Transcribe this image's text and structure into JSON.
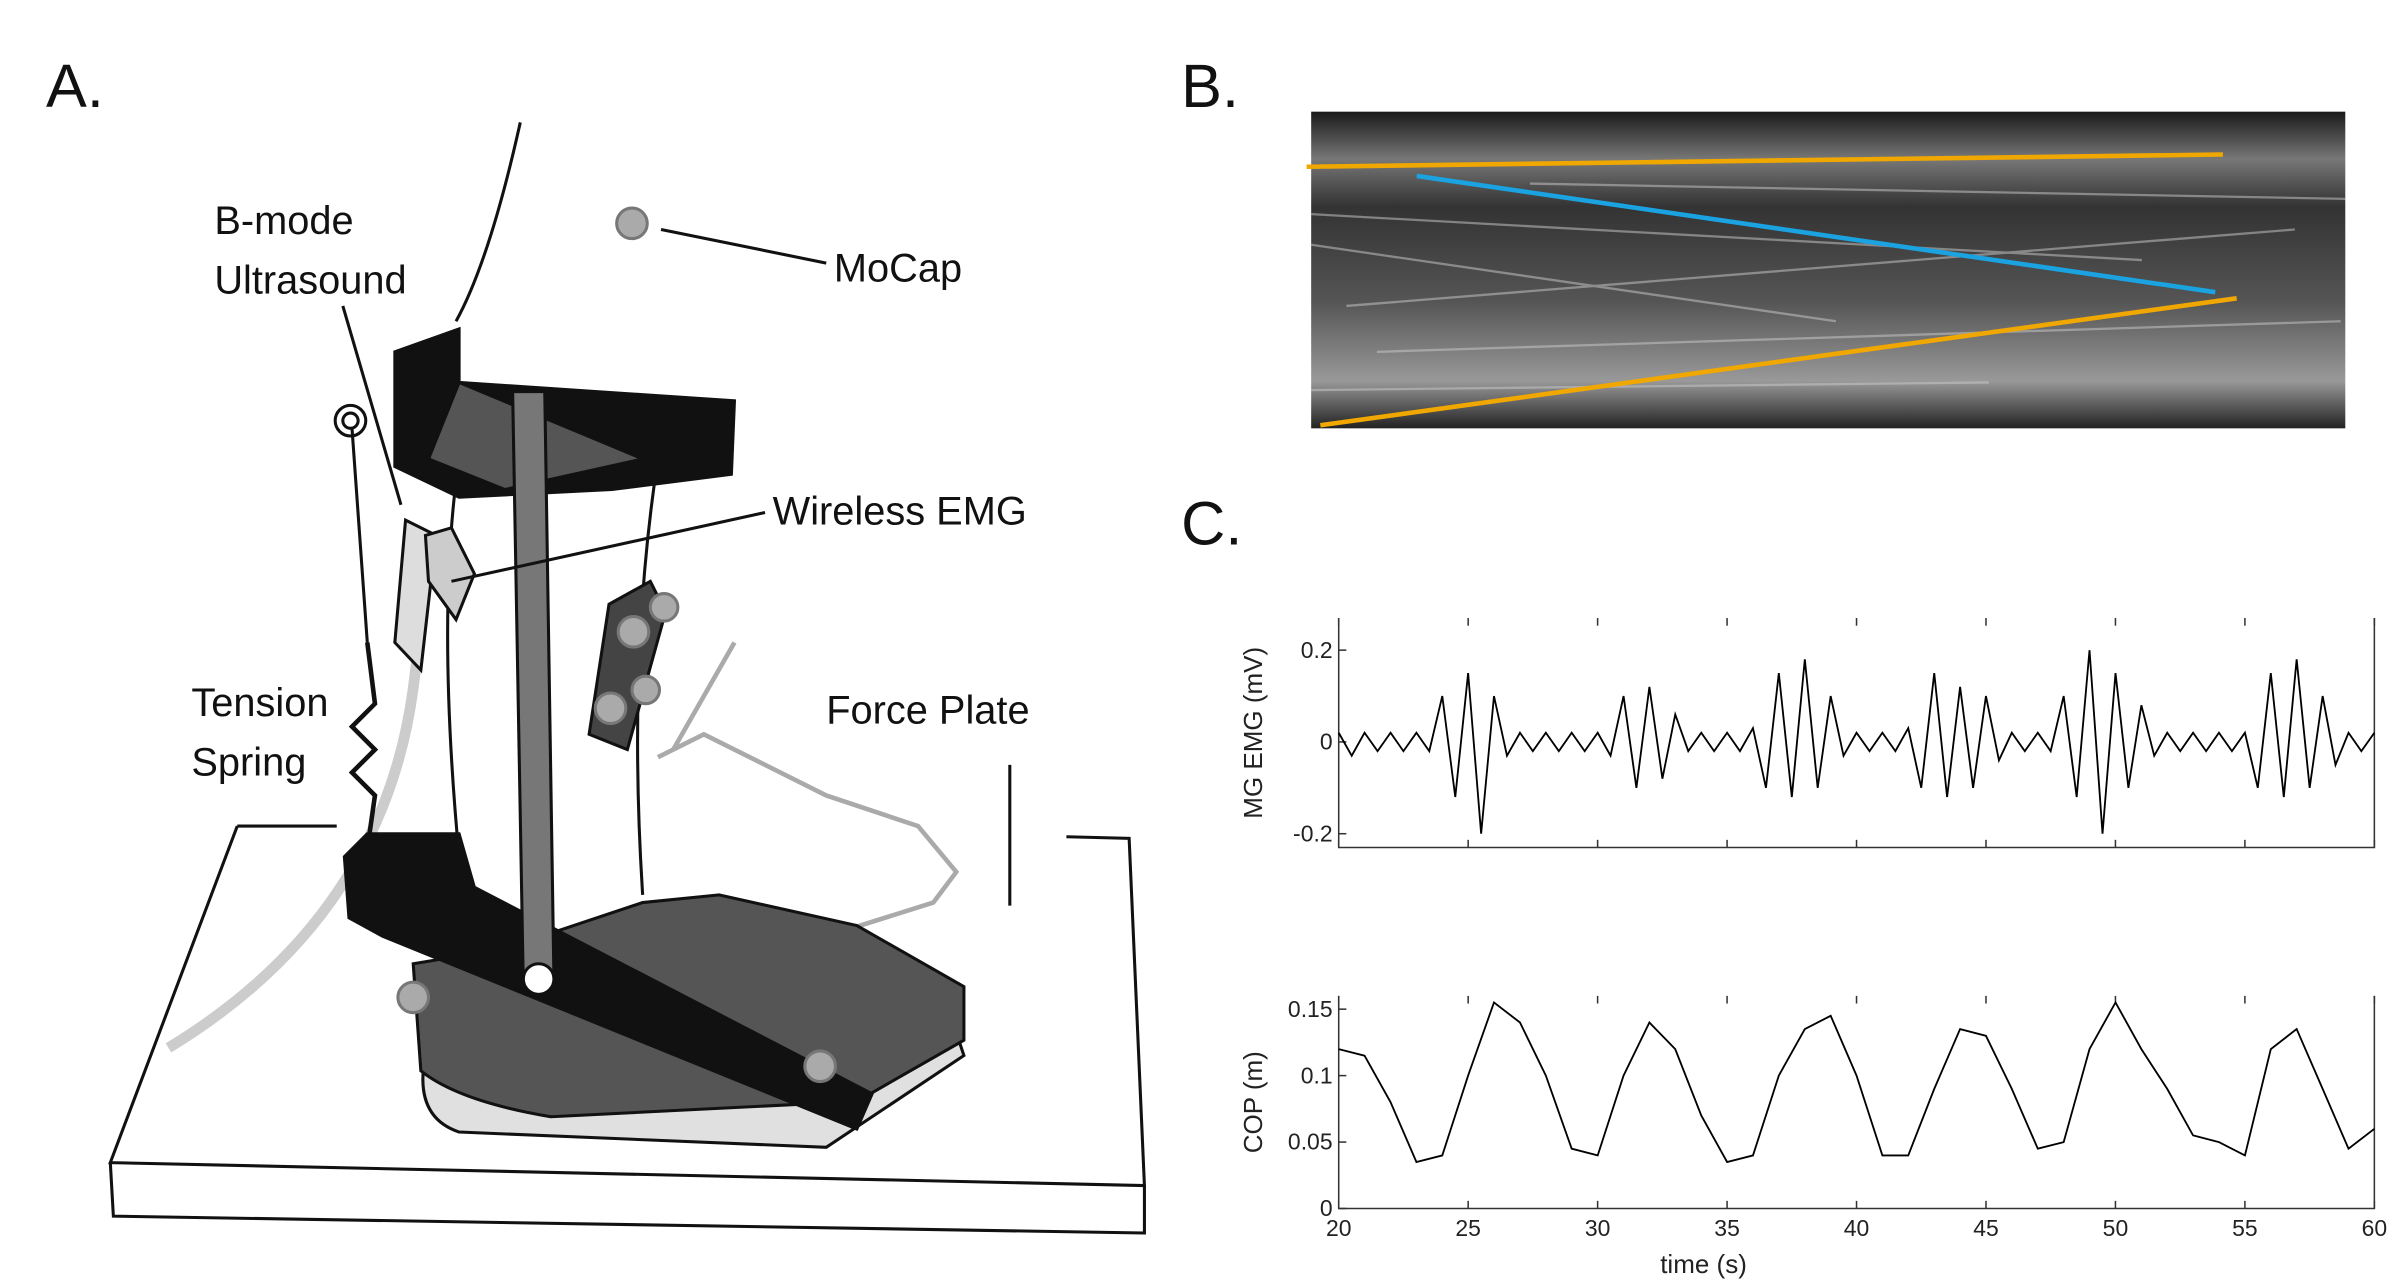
{
  "panels": {
    "a": "A.",
    "b": "B.",
    "c": "C."
  },
  "diagram": {
    "ultrasound": [
      "B-mode",
      "Ultrasound"
    ],
    "mocap": "MoCap",
    "emg": "Wireless EMG",
    "spring": [
      "Tension",
      "Spring"
    ],
    "plate": "Force Plate"
  },
  "chart_data": [
    {
      "type": "line",
      "ylabel": "MG EMG (mV)",
      "color": "#000000",
      "x": [
        20,
        20.5,
        21,
        21.5,
        22,
        22.5,
        23,
        23.5,
        24,
        24.5,
        25,
        25.5,
        26,
        26.5,
        27,
        27.5,
        28,
        28.5,
        29,
        29.5,
        30,
        30.5,
        31,
        31.5,
        32,
        32.5,
        33,
        33.5,
        34,
        34.5,
        35,
        35.5,
        36,
        36.5,
        37,
        37.5,
        38,
        38.5,
        39,
        39.5,
        40,
        40.5,
        41,
        41.5,
        42,
        42.5,
        43,
        43.5,
        44,
        44.5,
        45,
        45.5,
        46,
        46.5,
        47,
        47.5,
        48,
        48.5,
        49,
        49.5,
        50,
        50.5,
        51,
        51.5,
        52,
        52.5,
        53,
        53.5,
        54,
        54.5,
        55,
        55.5,
        56,
        56.5,
        57,
        57.5,
        58,
        58.5,
        59,
        59.5,
        60
      ],
      "values": [
        0.02,
        -0.03,
        0.02,
        -0.02,
        0.02,
        -0.02,
        0.02,
        -0.02,
        0.1,
        -0.12,
        0.15,
        -0.2,
        0.1,
        -0.03,
        0.02,
        -0.02,
        0.02,
        -0.02,
        0.02,
        -0.02,
        0.02,
        -0.03,
        0.1,
        -0.1,
        0.12,
        -0.08,
        0.06,
        -0.02,
        0.02,
        -0.02,
        0.02,
        -0.02,
        0.03,
        -0.1,
        0.15,
        -0.12,
        0.18,
        -0.1,
        0.1,
        -0.03,
        0.02,
        -0.02,
        0.02,
        -0.02,
        0.03,
        -0.1,
        0.15,
        -0.12,
        0.12,
        -0.1,
        0.1,
        -0.04,
        0.02,
        -0.02,
        0.02,
        -0.02,
        0.1,
        -0.12,
        0.2,
        -0.2,
        0.15,
        -0.1,
        0.08,
        -0.03,
        0.02,
        -0.02,
        0.02,
        -0.02,
        0.02,
        -0.02,
        0.02,
        -0.1,
        0.15,
        -0.12,
        0.18,
        -0.1,
        0.1,
        -0.05,
        0.02,
        -0.02,
        0.02
      ],
      "xlim": [
        20,
        60
      ],
      "xticks": [
        20,
        25,
        30,
        35,
        40,
        45,
        50,
        55,
        60
      ],
      "show_xtick_labels": false,
      "ylim": [
        -0.23,
        0.27
      ],
      "yticks": [
        -0.2,
        0,
        0.2
      ]
    },
    {
      "type": "line",
      "ylabel": "COP (m)",
      "xlabel": "time (s)",
      "color": "#000000",
      "x": [
        20,
        21,
        22,
        23,
        24,
        25,
        26,
        27,
        28,
        29,
        30,
        31,
        32,
        33,
        34,
        35,
        36,
        37,
        38,
        39,
        40,
        41,
        42,
        43,
        44,
        45,
        46,
        47,
        48,
        49,
        50,
        51,
        52,
        53,
        54,
        55,
        56,
        57,
        58,
        59,
        60
      ],
      "values": [
        0.12,
        0.115,
        0.08,
        0.035,
        0.04,
        0.1,
        0.155,
        0.14,
        0.1,
        0.045,
        0.04,
        0.1,
        0.14,
        0.12,
        0.07,
        0.035,
        0.04,
        0.1,
        0.135,
        0.145,
        0.1,
        0.04,
        0.04,
        0.09,
        0.135,
        0.13,
        0.09,
        0.045,
        0.05,
        0.12,
        0.155,
        0.12,
        0.09,
        0.055,
        0.05,
        0.04,
        0.12,
        0.135,
        0.09,
        0.045,
        0.06
      ],
      "xlim": [
        20,
        60
      ],
      "xticks": [
        20,
        25,
        30,
        35,
        40,
        45,
        50,
        55,
        60
      ],
      "show_xtick_labels": true,
      "ylim": [
        0,
        0.16
      ],
      "yticks": [
        0,
        0.05,
        0.1,
        0.15
      ]
    }
  ]
}
